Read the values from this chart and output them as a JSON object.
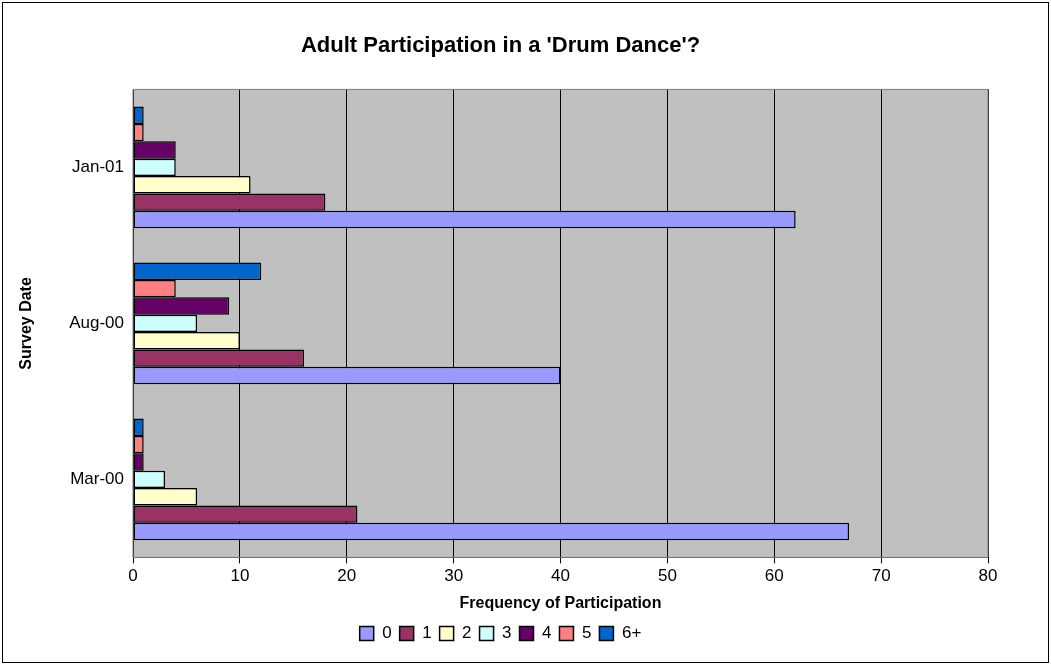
{
  "chart_data": {
    "type": "bar",
    "orientation": "horizontal",
    "title": "Adult Participation in a 'Drum Dance'?",
    "xlabel": "Frequency of Participation",
    "ylabel": "Survey Date",
    "categories": [
      "Jan-01",
      "Aug-00",
      "Mar-00"
    ],
    "series": [
      {
        "name": "0",
        "color": "#9999ff",
        "values": [
          62,
          40,
          67
        ]
      },
      {
        "name": "1",
        "color": "#993366",
        "values": [
          18,
          16,
          21
        ]
      },
      {
        "name": "2",
        "color": "#ffffcc",
        "values": [
          11,
          10,
          6
        ]
      },
      {
        "name": "3",
        "color": "#ccffff",
        "values": [
          4,
          6,
          3
        ]
      },
      {
        "name": "4",
        "color": "#660066",
        "values": [
          4,
          9,
          1
        ]
      },
      {
        "name": "5",
        "color": "#ff8080",
        "values": [
          1,
          4,
          1
        ]
      },
      {
        "name": "6+",
        "color": "#0066cc",
        "values": [
          1,
          12,
          1
        ]
      }
    ],
    "xlim": [
      0,
      80
    ],
    "xticks": [
      0,
      10,
      20,
      30,
      40,
      50,
      60,
      70,
      80
    ],
    "grid": "x",
    "legend": "bottom"
  }
}
